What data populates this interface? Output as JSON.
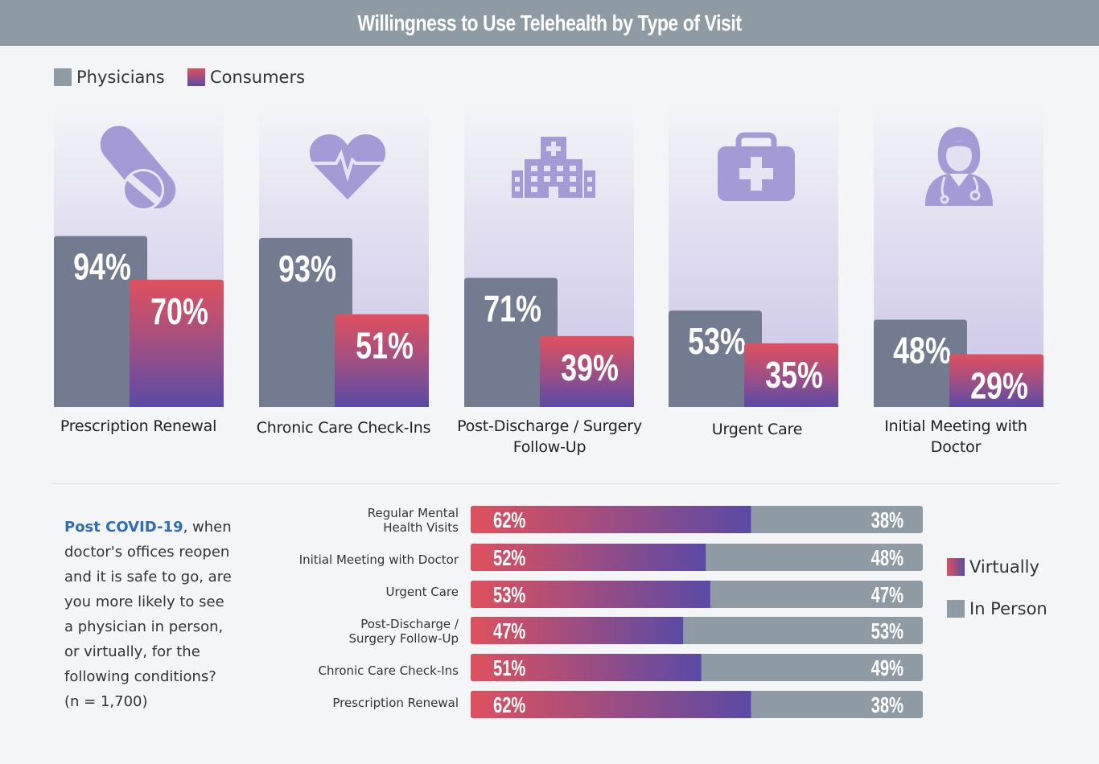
{
  "title": "Willingness to Use Telehealth by Type of Visit",
  "legend_top": {
    "physicians": "Physicians",
    "consumers": "Consumers"
  },
  "colors": {
    "physician": "#737b90",
    "consumer_top": "#e0505d",
    "consumer_bottom": "#5a4aa6",
    "icon": "#a49bd6",
    "in_person": "#8e9ba5",
    "highlight": "#2f6db5"
  },
  "chart_data": [
    {
      "type": "bar",
      "title": "Willingness to Use Telehealth by Type of Visit",
      "categories": [
        "Prescription Renewal",
        "Chronic Care Check-Ins",
        "Post-Discharge / Surgery Follow-Up",
        "Urgent Care",
        "Initial Meeting with Doctor"
      ],
      "series": [
        {
          "name": "Physicians",
          "values": [
            94,
            93,
            71,
            53,
            48
          ],
          "labels": [
            "94%",
            "93%",
            "71%",
            "53%",
            "48%"
          ]
        },
        {
          "name": "Consumers",
          "values": [
            70,
            51,
            39,
            35,
            29
          ],
          "labels": [
            "70%",
            "51%",
            "39%",
            "35%",
            "29%"
          ]
        }
      ],
      "icons": [
        "pill-icon",
        "heartbeat-icon",
        "hospital-icon",
        "medical-kit-icon",
        "doctor-icon"
      ],
      "ylim": [
        0,
        100
      ],
      "legend": "top-left"
    },
    {
      "type": "bar",
      "orientation": "horizontal-stacked",
      "categories": [
        "Regular Mental Health Visits",
        "Initial Meeting with Doctor",
        "Urgent Care",
        "Post-Discharge / Surgery Follow-Up",
        "Chronic Care Check-Ins",
        "Prescription Renewal"
      ],
      "series": [
        {
          "name": "Virtually",
          "values": [
            62,
            52,
            53,
            47,
            51,
            62
          ],
          "labels": [
            "62%",
            "52%",
            "53%",
            "47%",
            "51%",
            "62%"
          ]
        },
        {
          "name": "In Person",
          "values": [
            38,
            48,
            47,
            53,
            49,
            38
          ],
          "labels": [
            "38%",
            "48%",
            "47%",
            "53%",
            "49%",
            "38%"
          ]
        }
      ],
      "xlim": [
        0,
        100
      ],
      "legend": "right"
    }
  ],
  "category_labels": {
    "c0": "Prescription Renewal",
    "c1": "Chronic Care Check-Ins",
    "c2a": "Post-Discharge / Surgery",
    "c2b": "Follow-Up",
    "c3": "Urgent Care",
    "c4a": "Initial Meeting with",
    "c4b": "Doctor"
  },
  "question": {
    "highlight": "Post COVID-19",
    "text": ", when doctor's offices reopen and it is safe to go, are you more likely to see a physician in person, or virtually, for the following conditions?",
    "sample": "(n = 1,700)"
  },
  "row_labels": {
    "r0a": "Regular Mental",
    "r0b": "Health Visits",
    "r1": "Initial Meeting with Doctor",
    "r2": "Urgent Care",
    "r3a": "Post-Discharge /",
    "r3b": "Surgery Follow-Up",
    "r4": "Chronic Care Check-Ins",
    "r5": "Prescription Renewal"
  },
  "legend_right": {
    "virtually": "Virtually",
    "in_person": "In Person"
  }
}
